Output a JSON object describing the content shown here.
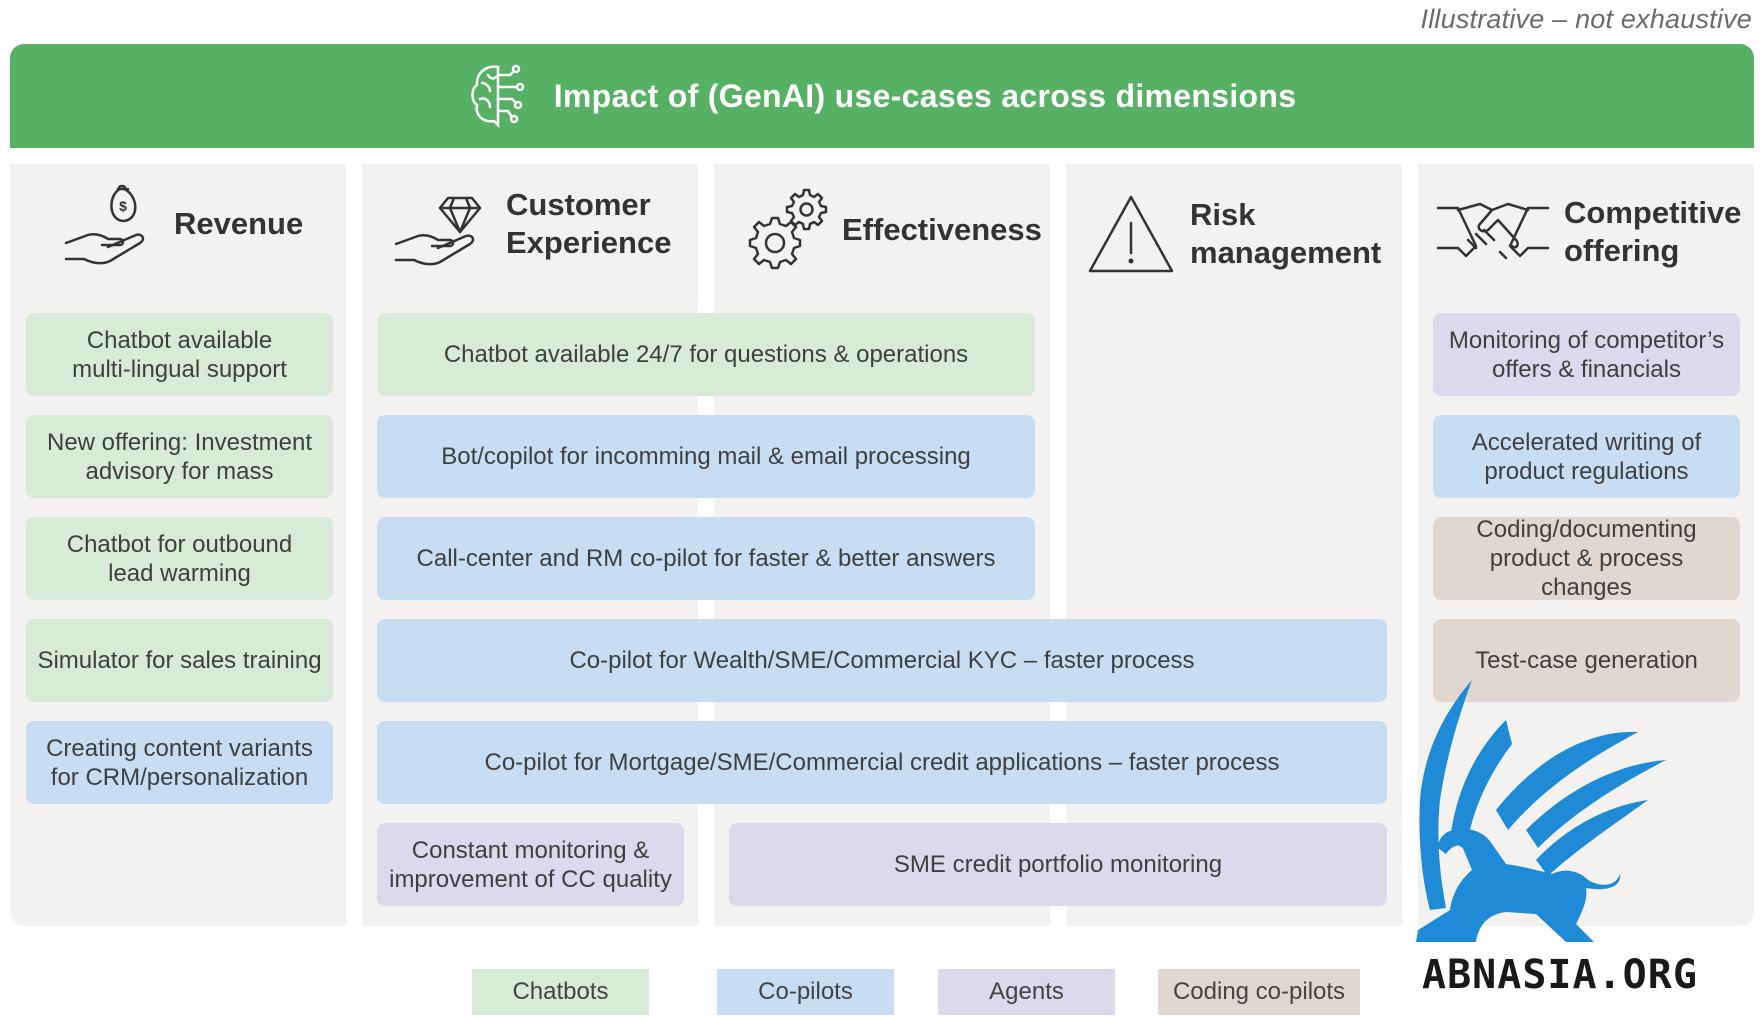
{
  "note": "Illustrative – not exhaustive",
  "banner": {
    "title": "Impact of (GenAI) use-cases across dimensions",
    "icon": "brain-circuit-icon"
  },
  "columns": [
    {
      "title": "Revenue",
      "icon": "money-bag-hand-icon"
    },
    {
      "title": "Customer\nExperience",
      "icon": "diamond-hand-icon"
    },
    {
      "title": "Effectiveness",
      "icon": "gears-icon"
    },
    {
      "title": "Risk\nmanagement",
      "icon": "warning-triangle-icon"
    },
    {
      "title": "Competitive\noffering",
      "icon": "handshake-icon"
    }
  ],
  "cards": {
    "revenue": [
      {
        "text": "Chatbot available\nmulti-lingual support",
        "type": "Chatbots"
      },
      {
        "text": "New offering: Investment\nadvisory for mass",
        "type": "Chatbots"
      },
      {
        "text": "Chatbot for outbound\nlead warming",
        "type": "Chatbots"
      },
      {
        "text": "Simulator for sales training",
        "type": "Chatbots"
      },
      {
        "text": "Creating content variants\nfor CRM/personalization",
        "type": "Co-pilots"
      }
    ],
    "spanning": [
      {
        "text": "Chatbot available 24/7 for questions & operations",
        "type": "Chatbots"
      },
      {
        "text": "Bot/copilot for incomming mail & email processing",
        "type": "Co-pilots"
      },
      {
        "text": "Call-center and RM co-pilot for faster & better answers",
        "type": "Co-pilots"
      },
      {
        "text": "Co-pilot for Wealth/SME/Commercial KYC – faster process",
        "type": "Co-pilots"
      },
      {
        "text": "Co-pilot for Mortgage/SME/Commercial credit applications – faster process",
        "type": "Co-pilots"
      },
      {
        "text": "Constant monitoring &\nimprovement of CC quality",
        "type": "Agents"
      },
      {
        "text": "SME credit portfolio monitoring",
        "type": "Agents"
      }
    ],
    "competitive": [
      {
        "text": "Monitoring of competitor’s\noffers & financials",
        "type": "Agents"
      },
      {
        "text": "Accelerated writing of\nproduct regulations",
        "type": "Co-pilots"
      },
      {
        "text": "Coding/documenting\nproduct & process changes",
        "type": "Coding co-pilots"
      },
      {
        "text": "Test-case generation",
        "type": "Coding co-pilots"
      }
    ]
  },
  "legend": [
    {
      "label": "Chatbots",
      "color": "#d7ebd6"
    },
    {
      "label": "Co-pilots",
      "color": "#c7ddf4"
    },
    {
      "label": "Agents",
      "color": "#ddd8ec"
    },
    {
      "label": "Coding co-pilots",
      "color": "#e1d7cf"
    }
  ],
  "watermark": {
    "text": "ABNASIA.ORG",
    "logo": "griffin-logo",
    "color": "#1f8ad6"
  },
  "colors": {
    "banner": "#56b164",
    "column_bg": "#f3f2f0"
  }
}
